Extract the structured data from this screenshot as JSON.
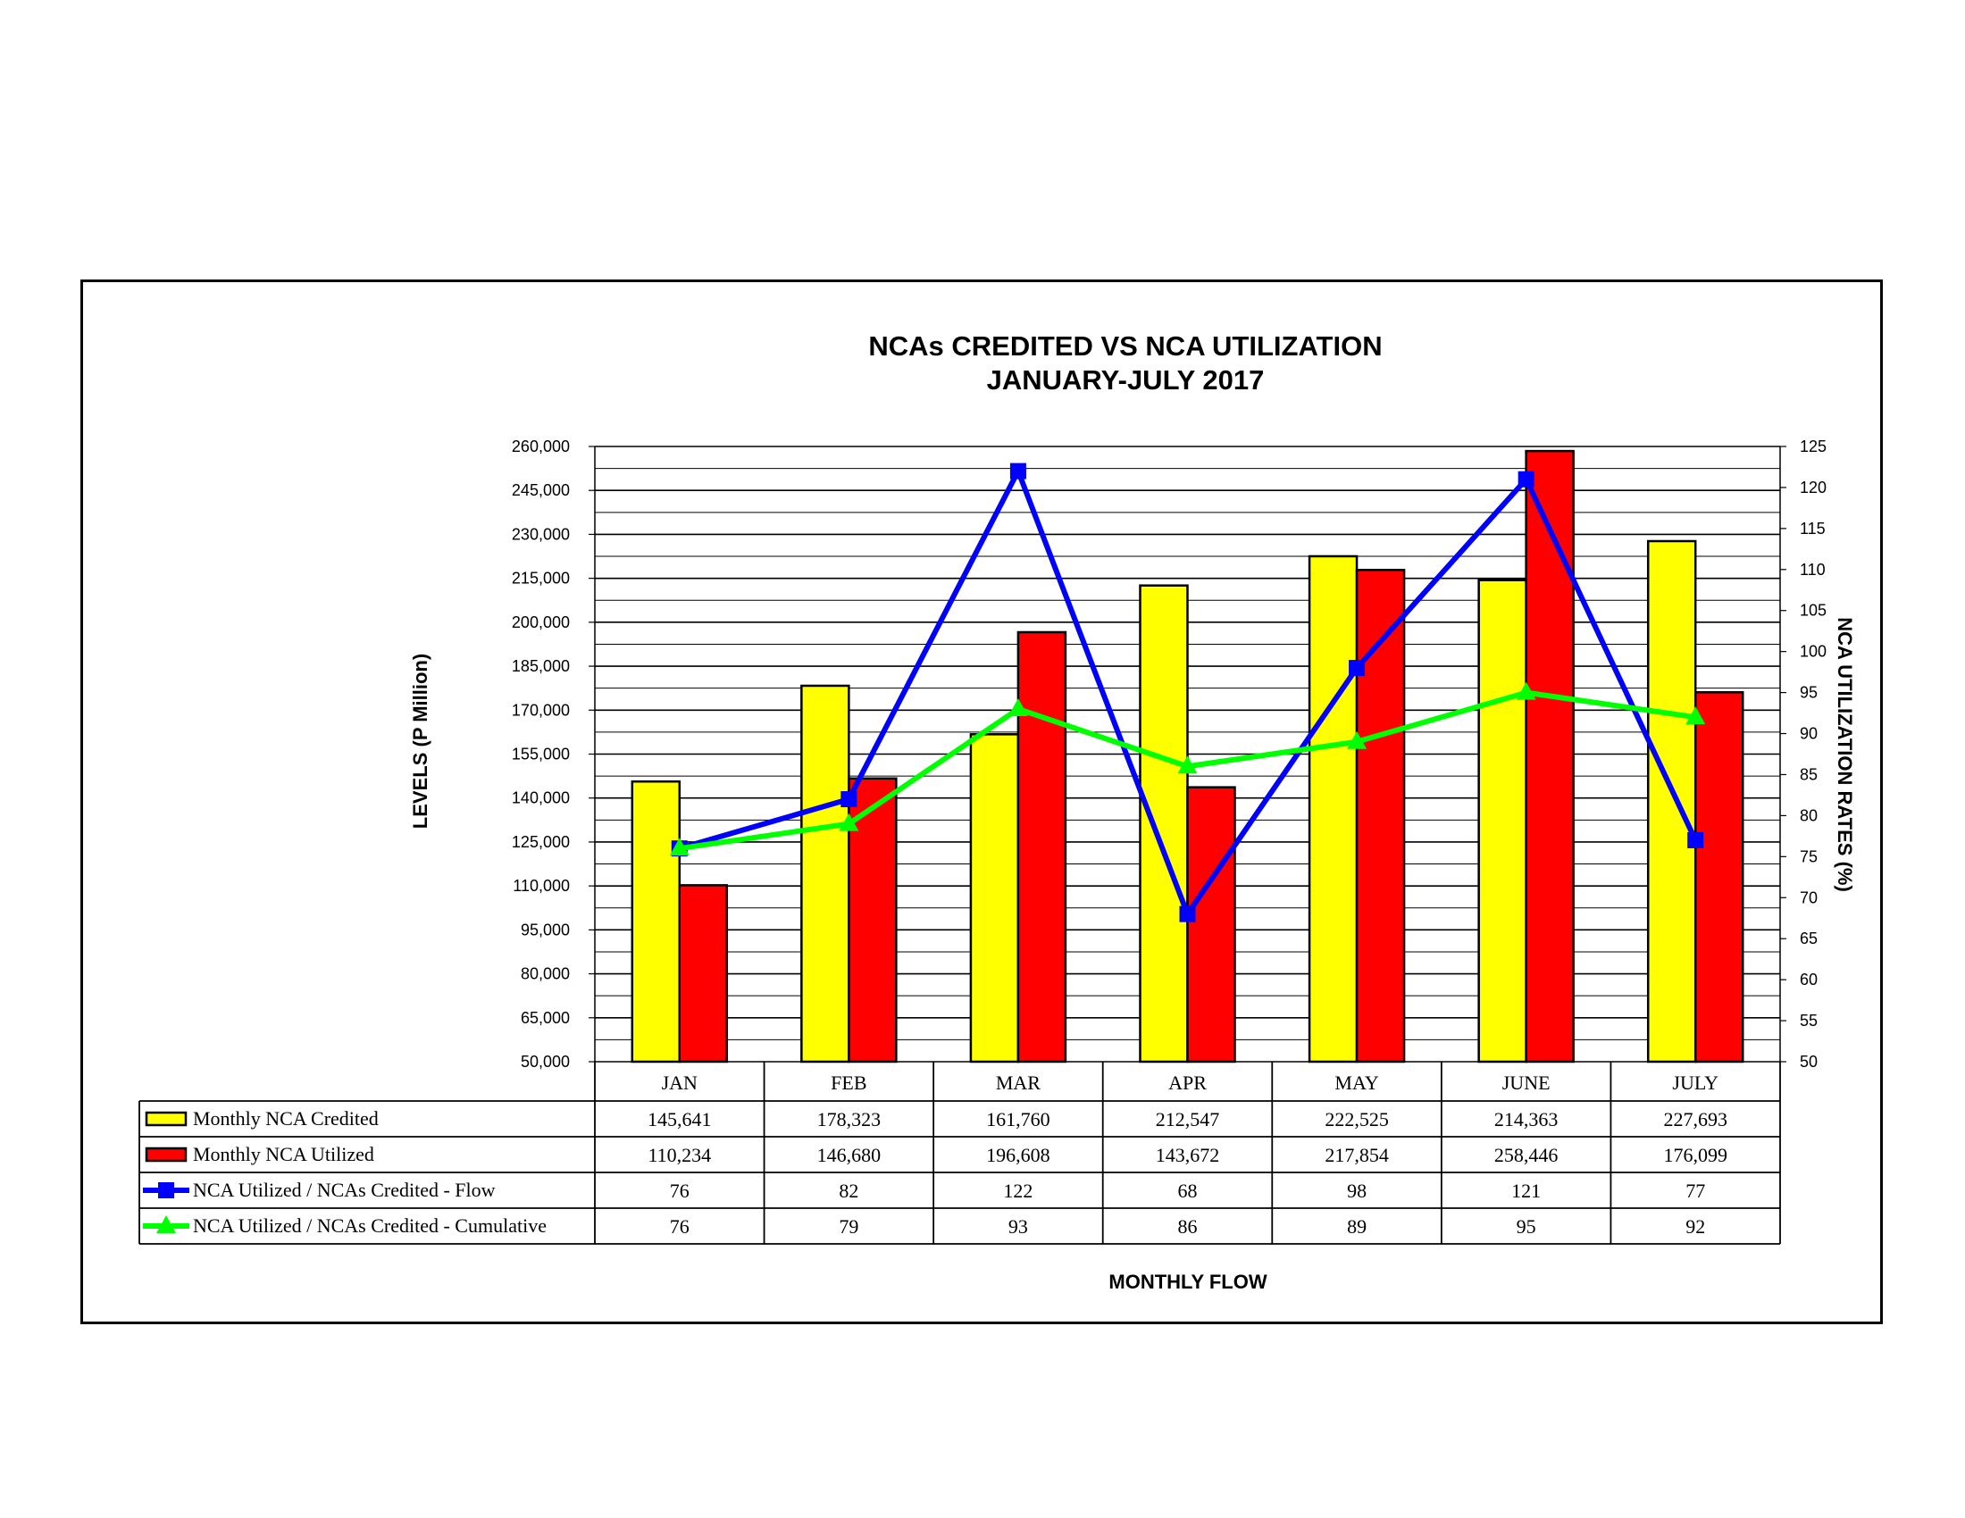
{
  "chart_data": {
    "type": "bar",
    "title": "NCAs CREDITED VS NCA UTILIZATION",
    "subtitle": "JANUARY-JULY 2017",
    "xlabel": "MONTHLY FLOW",
    "ylabel": "LEVELS (P Million)",
    "y2label": "NCA UTILIZATION RATES (%)",
    "ylim": [
      50000,
      260000
    ],
    "y2lim": [
      50,
      125
    ],
    "y_ticks": [
      "50,000",
      "65,000",
      "80,000",
      "95,000",
      "110,000",
      "125,000",
      "140,000",
      "155,000",
      "170,000",
      "185,000",
      "200,000",
      "215,000",
      "230,000",
      "245,000",
      "260,000"
    ],
    "y2_ticks": [
      "50",
      "55",
      "60",
      "65",
      "70",
      "75",
      "80",
      "85",
      "90",
      "95",
      "100",
      "105",
      "110",
      "115",
      "120",
      "125"
    ],
    "grid": true,
    "legend": "data-table",
    "categories": [
      "JAN",
      "FEB",
      "MAR",
      "APR",
      "MAY",
      "JUNE",
      "JULY"
    ],
    "series": [
      {
        "name": "Monthly NCA Credited",
        "kind": "bar",
        "axis": "left",
        "color": "#ffff00",
        "values": [
          145641,
          178323,
          161760,
          212547,
          222525,
          214363,
          227693
        ],
        "labels": [
          "145,641",
          "178,323",
          "161,760",
          "212,547",
          "222,525",
          "214,363",
          "227,693"
        ]
      },
      {
        "name": "Monthly NCA Utilized",
        "kind": "bar",
        "axis": "left",
        "color": "#ff0000",
        "values": [
          110234,
          146680,
          196608,
          143672,
          217854,
          258446,
          176099
        ],
        "labels": [
          "110,234",
          "146,680",
          "196,608",
          "143,672",
          "217,854",
          "258,446",
          "176,099"
        ]
      },
      {
        "name": "NCA Utilized / NCAs Credited - Flow",
        "kind": "line",
        "axis": "right",
        "marker": "square",
        "color": "#0000ff",
        "values": [
          76,
          82,
          122,
          68,
          98,
          121,
          77
        ],
        "labels": [
          "76",
          "82",
          "122",
          "68",
          "98",
          "121",
          "77"
        ]
      },
      {
        "name": "NCA Utilized / NCAs Credited - Cumulative",
        "kind": "line",
        "axis": "right",
        "marker": "triangle",
        "color": "#00ff00",
        "values": [
          76,
          79,
          93,
          86,
          89,
          95,
          92
        ],
        "labels": [
          "76",
          "79",
          "93",
          "86",
          "89",
          "95",
          "92"
        ]
      }
    ]
  }
}
